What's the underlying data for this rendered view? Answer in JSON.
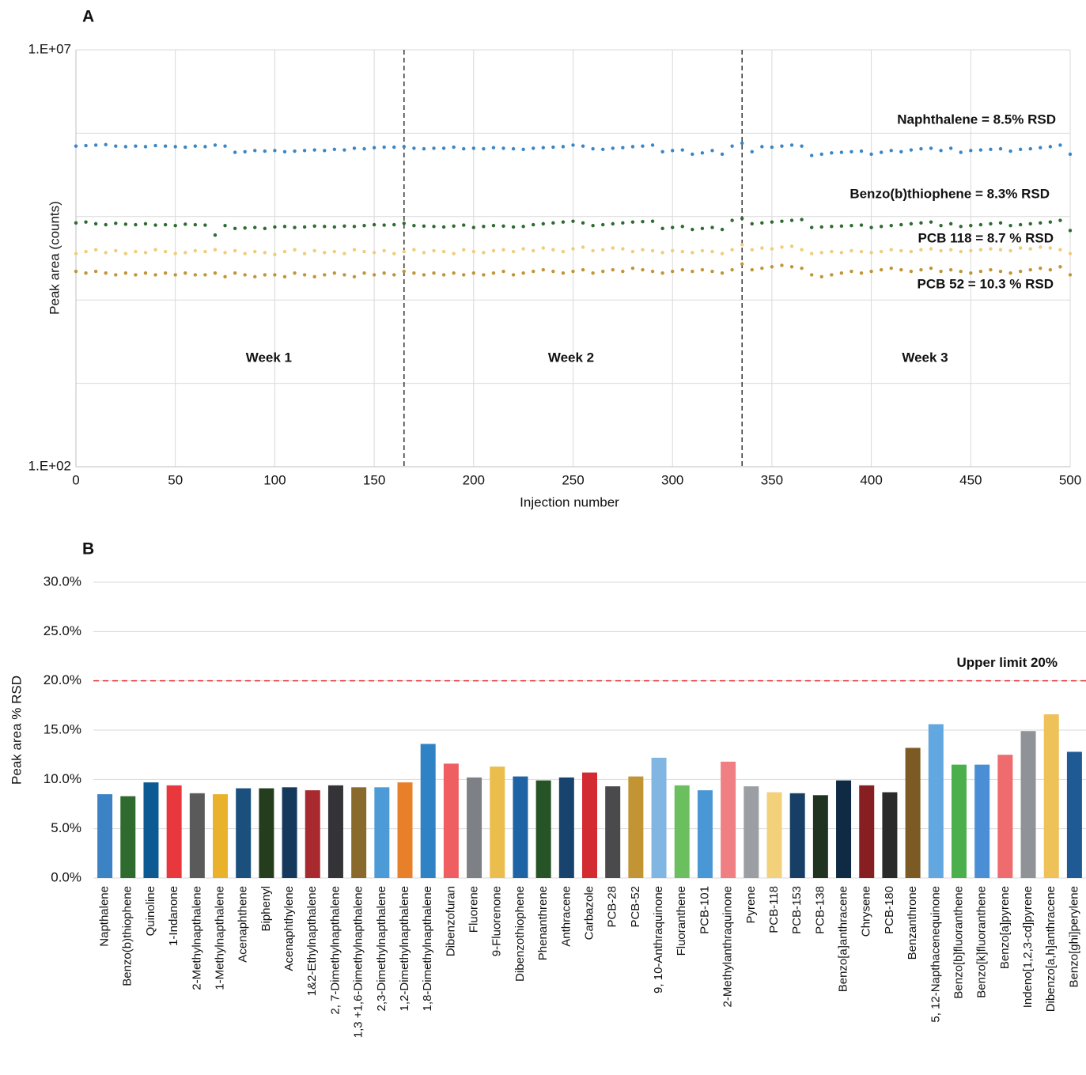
{
  "chart_data": [
    {
      "type": "scatter",
      "panel": "A",
      "ylabel": "Peak area (counts)",
      "xlabel": "Injection number",
      "log_y": true,
      "grid": true,
      "xlim": [
        0,
        500
      ],
      "xticks": [
        0,
        50,
        100,
        150,
        200,
        250,
        300,
        350,
        400,
        450,
        500
      ],
      "ylim": [
        100,
        10000000
      ],
      "yticks": [
        {
          "value": 100,
          "label": "1.E+02"
        },
        {
          "value": 10000000,
          "label": "1.E+07"
        }
      ],
      "ygrid": [
        1000,
        10000,
        100000,
        1000000
      ],
      "vlines": [
        165,
        335
      ],
      "annotations": [
        {
          "text": "Week 1",
          "x": 97,
          "y": 2000
        },
        {
          "text": "Week 2",
          "x": 249,
          "y": 2000
        },
        {
          "text": "Week 3",
          "x": 427,
          "y": 2000
        }
      ],
      "x": [
        0,
        5,
        10,
        15,
        20,
        25,
        30,
        35,
        40,
        45,
        50,
        55,
        60,
        65,
        70,
        75,
        80,
        85,
        90,
        95,
        100,
        105,
        110,
        115,
        120,
        125,
        130,
        135,
        140,
        145,
        150,
        155,
        160,
        165,
        170,
        175,
        180,
        185,
        190,
        195,
        200,
        205,
        210,
        215,
        220,
        225,
        230,
        235,
        240,
        245,
        250,
        255,
        260,
        265,
        270,
        275,
        280,
        285,
        290,
        295,
        300,
        305,
        310,
        315,
        320,
        325,
        330,
        335,
        340,
        345,
        350,
        355,
        360,
        365,
        370,
        375,
        380,
        385,
        390,
        395,
        400,
        405,
        410,
        415,
        420,
        425,
        430,
        435,
        440,
        445,
        450,
        455,
        460,
        465,
        470,
        475,
        480,
        485,
        490,
        495,
        500
      ],
      "series": [
        {
          "name": "Naphthalene = 8.5% RSD",
          "color": "#3a86c6",
          "values": [
            700000,
            710000,
            720000,
            730000,
            700000,
            690000,
            700000,
            690000,
            710000,
            700000,
            690000,
            680000,
            700000,
            690000,
            720000,
            700000,
            590000,
            600000,
            620000,
            610000,
            620000,
            600000,
            610000,
            620000,
            630000,
            620000,
            640000,
            630000,
            660000,
            650000,
            670000,
            680000,
            680000,
            690000,
            660000,
            650000,
            660000,
            660000,
            680000,
            650000,
            660000,
            650000,
            670000,
            660000,
            650000,
            640000,
            660000,
            670000,
            680000,
            690000,
            720000,
            700000,
            650000,
            640000,
            660000,
            670000,
            690000,
            700000,
            720000,
            600000,
            620000,
            630000,
            560000,
            580000,
            620000,
            560000,
            700000,
            760000,
            600000,
            690000,
            680000,
            700000,
            720000,
            700000,
            540000,
            560000,
            580000,
            590000,
            600000,
            610000,
            560000,
            590000,
            620000,
            600000,
            630000,
            650000,
            660000,
            620000,
            660000,
            590000,
            620000,
            630000,
            640000,
            650000,
            610000,
            640000,
            650000,
            670000,
            690000,
            720000,
            560000
          ]
        },
        {
          "name": "Benzo(b)thiophene = 8.3% RSD",
          "color": "#2e6b30",
          "values": [
            84000,
            86000,
            82000,
            80000,
            83000,
            81000,
            80000,
            82000,
            79000,
            80000,
            78000,
            81000,
            80000,
            79000,
            60000,
            78000,
            72000,
            73000,
            74000,
            72000,
            75000,
            76000,
            74000,
            75000,
            77000,
            76000,
            75000,
            77000,
            76000,
            78000,
            80000,
            79000,
            80000,
            83000,
            78000,
            77000,
            76000,
            75000,
            77000,
            79000,
            74000,
            76000,
            78000,
            77000,
            75000,
            76000,
            80000,
            82000,
            84000,
            86000,
            88000,
            84000,
            78000,
            80000,
            82000,
            84000,
            86000,
            87000,
            88000,
            72000,
            74000,
            76000,
            70000,
            72000,
            74000,
            70000,
            90000,
            95000,
            82000,
            84000,
            86000,
            88000,
            90000,
            92000,
            74000,
            75000,
            76000,
            77000,
            78000,
            79000,
            74000,
            76000,
            78000,
            80000,
            82000,
            84000,
            86000,
            78000,
            82000,
            76000,
            78000,
            80000,
            82000,
            84000,
            78000,
            80000,
            82000,
            84000,
            86000,
            90000,
            68000
          ]
        },
        {
          "name": "PCB 118 = 8.7 % RSD",
          "color": "#efcd7a",
          "values": [
            36000,
            38000,
            40000,
            37000,
            39000,
            36000,
            38000,
            37000,
            40000,
            38000,
            36000,
            37000,
            39000,
            38000,
            40000,
            37000,
            39000,
            36000,
            38000,
            37000,
            35000,
            38000,
            40000,
            36000,
            39000,
            37000,
            38000,
            36000,
            40000,
            38000,
            37000,
            39000,
            36000,
            38000,
            40000,
            37000,
            39000,
            38000,
            36000,
            40000,
            38000,
            37000,
            39000,
            40000,
            38000,
            41000,
            39000,
            42000,
            40000,
            38000,
            41000,
            43000,
            39000,
            40000,
            42000,
            41000,
            38000,
            40000,
            39000,
            37000,
            39000,
            38000,
            37000,
            39000,
            38000,
            36000,
            40000,
            46000,
            40000,
            42000,
            41000,
            43000,
            44000,
            40000,
            36000,
            37000,
            38000,
            37000,
            39000,
            38000,
            37000,
            38000,
            40000,
            39000,
            38000,
            40000,
            41000,
            39000,
            40000,
            38000,
            39000,
            40000,
            41000,
            40000,
            39000,
            42000,
            41000,
            43000,
            42000,
            40000,
            36000
          ]
        },
        {
          "name": "PCB 52 = 10.3 % RSD",
          "color": "#c39539",
          "values": [
            22000,
            21000,
            22000,
            21000,
            20000,
            21000,
            20000,
            21000,
            20000,
            21000,
            20000,
            21000,
            20000,
            20000,
            21000,
            19000,
            21000,
            20000,
            19000,
            20000,
            20000,
            19000,
            21000,
            20000,
            19000,
            20000,
            21000,
            20000,
            19000,
            21000,
            20000,
            21000,
            20000,
            22000,
            21000,
            20000,
            21000,
            20000,
            21000,
            20000,
            21000,
            20000,
            21000,
            22000,
            20000,
            21000,
            22000,
            23000,
            22000,
            21000,
            22000,
            23000,
            21000,
            22000,
            23000,
            22000,
            24000,
            23000,
            22000,
            21000,
            22000,
            23000,
            22000,
            23000,
            22000,
            21000,
            23000,
            27000,
            23000,
            24000,
            25000,
            26000,
            25000,
            24000,
            20000,
            19000,
            20000,
            21000,
            22000,
            21000,
            22000,
            23000,
            24000,
            23000,
            22000,
            23000,
            24000,
            22000,
            23000,
            22000,
            21000,
            22000,
            23000,
            22000,
            21000,
            22000,
            23000,
            24000,
            23000,
            25000,
            20000
          ]
        }
      ]
    },
    {
      "type": "bar",
      "panel": "B",
      "ylabel": "Peak area % RSD",
      "grid": true,
      "ylim": [
        0,
        30
      ],
      "yticks": [
        {
          "value": 0,
          "label": "0.0%"
        },
        {
          "value": 5,
          "label": "5.0%"
        },
        {
          "value": 10,
          "label": "10.0%"
        },
        {
          "value": 15,
          "label": "15.0%"
        },
        {
          "value": 20,
          "label": "20.0%"
        },
        {
          "value": 25,
          "label": "25.0%"
        },
        {
          "value": 30,
          "label": "30.0%"
        }
      ],
      "upper_limit": {
        "value": 20,
        "label": "Upper limit 20%",
        "color": "#e8353b"
      },
      "categories": [
        "Napthalene",
        "Benzo(b)thiophene",
        "Quinoline",
        "1-Indanone",
        "2-Methylnapthalene",
        "1-Methylnapthalene",
        "Acenaphthene",
        "Biphenyl",
        "Acenaphthylene",
        "1&2-Ethylnapthalene",
        "2, 7-Dimethylnapthalene",
        "1,3 +1,6-Dimethylnapthalene",
        "2,3-Dimethylnapthalene",
        "1,2-Dimethylnapthalene",
        "1,8-Dimethylnapthalene",
        "Dibenzofuran",
        "Fluorene",
        "9-Fluorenone",
        "Dibenzothiophene",
        "Phenanthrene",
        "Anthracene",
        "Carbazole",
        "PCB-28",
        "PCB-52",
        "9, 10-Anthraquinone",
        "Fluoranthene",
        "PCB-101",
        "2-Methylanthraquinone",
        "Pyrene",
        "PCB-118",
        "PCB-153",
        "PCB-138",
        "Benzo[a]anthracene",
        "Chrysene",
        "PCB-180",
        "Benzanthrone",
        "5, 12-Napthacenequinone",
        "Benzo[b]fluoranthene",
        "Benzo[k]fluoranthene",
        "Benzo[a]pyrene",
        "Indeno[1,2,3-cd]pyrene",
        "Dibenzo[a,h]anthracene",
        "Benzo[ghi]perylene"
      ],
      "values": [
        8.5,
        8.3,
        9.7,
        9.4,
        8.6,
        8.5,
        9.1,
        9.1,
        9.2,
        8.9,
        9.4,
        9.2,
        9.2,
        9.7,
        13.6,
        11.6,
        10.2,
        11.3,
        10.3,
        9.9,
        10.2,
        10.7,
        9.3,
        10.3,
        12.2,
        9.4,
        8.9,
        11.8,
        9.3,
        8.7,
        8.6,
        8.4,
        9.9,
        9.4,
        8.7,
        13.2,
        15.6,
        11.5,
        11.5,
        12.5,
        14.9,
        16.6,
        12.8
      ],
      "colors": [
        "#3b83c4",
        "#2f6a2f",
        "#0c5a94",
        "#e8383e",
        "#5a5a5a",
        "#eab22a",
        "#1a4f7e",
        "#243d1c",
        "#14395c",
        "#a82a2e",
        "#333338",
        "#8a6a2c",
        "#4c9bd6",
        "#e8802a",
        "#2f82c3",
        "#ef5f62",
        "#7d8084",
        "#eabd4c",
        "#1d63a6",
        "#275426",
        "#17436e",
        "#d22b32",
        "#4a4a4c",
        "#c29434",
        "#82b6e2",
        "#6cbf5e",
        "#4a97d6",
        "#f07f84",
        "#9b9ea2",
        "#f3d07a",
        "#173f66",
        "#1f3320",
        "#0e2a45",
        "#861e22",
        "#2a2a2a",
        "#7c5a24",
        "#62a7df",
        "#4bb04c",
        "#4a8fd6",
        "#ee6b6e",
        "#8f9296",
        "#eec159",
        "#1f5a94"
      ]
    }
  ]
}
